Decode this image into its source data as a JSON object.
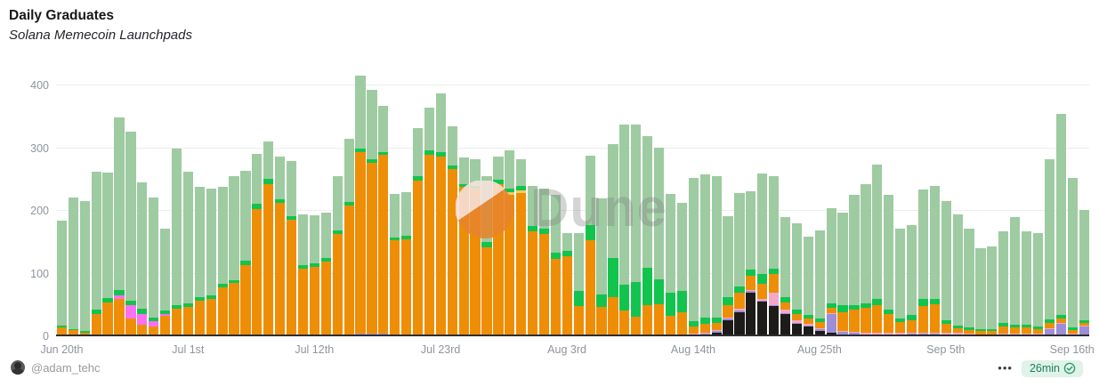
{
  "header": {
    "title": "Daily Graduates",
    "subtitle": "Solana Memecoin Launchpads"
  },
  "watermark": {
    "text": "Dune",
    "logo_orange": "#e8842c",
    "logo_pale": "#f7e3de"
  },
  "footer": {
    "author": "@adam_tehc",
    "more_label": "•••",
    "refresh_badge": "26min",
    "badge_bg": "#e0f2e9",
    "badge_text_color": "#1d7f5f"
  },
  "chart_data": {
    "type": "bar",
    "stacked": true,
    "title": "Daily Graduates",
    "subtitle": "Solana Memecoin Launchpads",
    "xlabel": "",
    "ylabel": "",
    "ylim": [
      0,
      400
    ],
    "y_ticks": [
      0,
      100,
      200,
      300,
      400
    ],
    "grid": true,
    "legend": "none",
    "x_is_daily_dates": "Jun 20 through Sep 17",
    "x_tick_labels": [
      "Jun 20th",
      "Jul 1st",
      "Jul 12th",
      "Jul 23rd",
      "Aug 3rd",
      "Aug 14th",
      "Aug 25th",
      "Sep 5th",
      "Sep 16th"
    ],
    "x_tick_indices": [
      0,
      11,
      22,
      33,
      44,
      55,
      66,
      77,
      88
    ],
    "series_order": [
      "black",
      "purple",
      "pink",
      "orange",
      "magenta",
      "yellow",
      "green",
      "pale_green"
    ],
    "series_colors": {
      "black": "#1c1b1a",
      "purple": "#9d8ed6",
      "pink": "#f3a8c8",
      "orange": "#ee8e06",
      "magenta": "#fb6ff1",
      "yellow": "#f0cd62",
      "green": "#12c44e",
      "pale_green": "#9ecba1"
    },
    "bars": [
      [
        0,
        2,
        0,
        12,
        0,
        0,
        3,
        168
      ],
      [
        0,
        1,
        0,
        9,
        0,
        0,
        2,
        210
      ],
      [
        0,
        1,
        0,
        5,
        0,
        0,
        2,
        207
      ],
      [
        0,
        2,
        0,
        33,
        0,
        0,
        8,
        220
      ],
      [
        0,
        2,
        0,
        52,
        0,
        0,
        7,
        200
      ],
      [
        0,
        2,
        0,
        58,
        6,
        0,
        8,
        275
      ],
      [
        0,
        2,
        0,
        26,
        22,
        0,
        7,
        269
      ],
      [
        0,
        2,
        0,
        16,
        18,
        0,
        8,
        202
      ],
      [
        0,
        2,
        0,
        13,
        9,
        0,
        6,
        191
      ],
      [
        0,
        2,
        0,
        30,
        4,
        0,
        5,
        131
      ],
      [
        0,
        2,
        0,
        42,
        0,
        0,
        6,
        250
      ],
      [
        0,
        2,
        0,
        45,
        0,
        0,
        5,
        210
      ],
      [
        0,
        2,
        0,
        55,
        0,
        0,
        6,
        175
      ],
      [
        0,
        2,
        0,
        58,
        0,
        0,
        5,
        171
      ],
      [
        0,
        3,
        0,
        75,
        0,
        0,
        6,
        154
      ],
      [
        0,
        3,
        0,
        82,
        0,
        0,
        5,
        166
      ],
      [
        0,
        3,
        0,
        110,
        0,
        0,
        8,
        143
      ],
      [
        0,
        3,
        0,
        200,
        0,
        0,
        8,
        80
      ],
      [
        0,
        3,
        0,
        240,
        0,
        0,
        8,
        59
      ],
      [
        0,
        3,
        0,
        210,
        0,
        0,
        6,
        68
      ],
      [
        0,
        3,
        0,
        183,
        0,
        0,
        5,
        88
      ],
      [
        0,
        3,
        0,
        105,
        0,
        0,
        6,
        80
      ],
      [
        0,
        3,
        0,
        108,
        0,
        0,
        5,
        77
      ],
      [
        0,
        3,
        0,
        116,
        0,
        0,
        6,
        72
      ],
      [
        0,
        3,
        0,
        160,
        0,
        0,
        6,
        86
      ],
      [
        0,
        3,
        0,
        205,
        0,
        0,
        6,
        101
      ],
      [
        0,
        4,
        0,
        290,
        0,
        0,
        6,
        115
      ],
      [
        0,
        4,
        0,
        273,
        0,
        0,
        6,
        110
      ],
      [
        0,
        4,
        0,
        285,
        0,
        0,
        5,
        74
      ],
      [
        0,
        3,
        0,
        150,
        0,
        0,
        5,
        69
      ],
      [
        0,
        3,
        0,
        152,
        0,
        0,
        5,
        70
      ],
      [
        0,
        3,
        0,
        245,
        0,
        0,
        8,
        76
      ],
      [
        0,
        3,
        0,
        287,
        0,
        0,
        6,
        69
      ],
      [
        0,
        3,
        0,
        283,
        0,
        0,
        8,
        94
      ],
      [
        0,
        3,
        0,
        263,
        0,
        0,
        6,
        63
      ],
      [
        0,
        3,
        0,
        235,
        0,
        0,
        5,
        42
      ],
      [
        0,
        3,
        0,
        232,
        0,
        0,
        5,
        43
      ],
      [
        0,
        3,
        0,
        139,
        0,
        0,
        8,
        105
      ],
      [
        0,
        3,
        0,
        240,
        0,
        0,
        6,
        38
      ],
      [
        0,
        3,
        0,
        222,
        0,
        5,
        6,
        60
      ],
      [
        0,
        3,
        0,
        225,
        0,
        4,
        8,
        42
      ],
      [
        0,
        3,
        0,
        165,
        0,
        0,
        8,
        64
      ],
      [
        0,
        3,
        0,
        160,
        0,
        0,
        8,
        64
      ],
      [
        0,
        3,
        0,
        120,
        0,
        0,
        10,
        92
      ],
      [
        0,
        3,
        0,
        125,
        0,
        0,
        8,
        28
      ],
      [
        0,
        3,
        0,
        45,
        0,
        0,
        25,
        92
      ],
      [
        0,
        3,
        0,
        150,
        0,
        0,
        25,
        110
      ],
      [
        0,
        3,
        0,
        44,
        0,
        0,
        20,
        153
      ],
      [
        0,
        3,
        0,
        60,
        0,
        0,
        62,
        181
      ],
      [
        0,
        3,
        0,
        38,
        0,
        0,
        42,
        255
      ],
      [
        0,
        3,
        0,
        28,
        0,
        0,
        56,
        250
      ],
      [
        0,
        3,
        0,
        46,
        0,
        0,
        60,
        210
      ],
      [
        0,
        3,
        0,
        48,
        0,
        0,
        40,
        210
      ],
      [
        0,
        3,
        0,
        30,
        0,
        0,
        36,
        158
      ],
      [
        0,
        3,
        0,
        36,
        0,
        0,
        34,
        140
      ],
      [
        0,
        2,
        2,
        12,
        0,
        0,
        8,
        228
      ],
      [
        2,
        2,
        2,
        14,
        0,
        0,
        10,
        228
      ],
      [
        5,
        3,
        2,
        12,
        0,
        0,
        8,
        225
      ],
      [
        25,
        3,
        2,
        20,
        0,
        0,
        12,
        130
      ],
      [
        38,
        3,
        3,
        25,
        0,
        0,
        10,
        150
      ],
      [
        70,
        2,
        2,
        22,
        0,
        0,
        10,
        125
      ],
      [
        55,
        2,
        2,
        25,
        0,
        0,
        15,
        161
      ],
      [
        48,
        2,
        20,
        30,
        0,
        0,
        8,
        147
      ],
      [
        35,
        2,
        5,
        12,
        0,
        0,
        8,
        128
      ],
      [
        20,
        2,
        3,
        10,
        0,
        0,
        8,
        137
      ],
      [
        15,
        2,
        3,
        8,
        0,
        0,
        6,
        125
      ],
      [
        8,
        3,
        2,
        10,
        0,
        0,
        6,
        140
      ],
      [
        5,
        30,
        2,
        8,
        0,
        0,
        8,
        152
      ],
      [
        3,
        4,
        2,
        30,
        0,
        0,
        10,
        148
      ],
      [
        2,
        3,
        2,
        35,
        0,
        0,
        8,
        175
      ],
      [
        0,
        3,
        2,
        40,
        0,
        0,
        8,
        189
      ],
      [
        0,
        3,
        2,
        45,
        0,
        0,
        10,
        214
      ],
      [
        0,
        3,
        2,
        30,
        0,
        0,
        8,
        182
      ],
      [
        0,
        3,
        2,
        18,
        0,
        0,
        6,
        142
      ],
      [
        0,
        4,
        2,
        20,
        0,
        0,
        8,
        143
      ],
      [
        0,
        4,
        2,
        42,
        0,
        0,
        12,
        174
      ],
      [
        0,
        4,
        2,
        45,
        0,
        0,
        8,
        181
      ],
      [
        0,
        3,
        2,
        15,
        0,
        0,
        5,
        191
      ],
      [
        0,
        3,
        2,
        8,
        0,
        0,
        4,
        178
      ],
      [
        0,
        3,
        1,
        6,
        0,
        0,
        4,
        158
      ],
      [
        0,
        2,
        1,
        5,
        0,
        0,
        3,
        129
      ],
      [
        0,
        2,
        1,
        6,
        0,
        0,
        3,
        131
      ],
      [
        0,
        3,
        1,
        12,
        0,
        0,
        5,
        147
      ],
      [
        0,
        3,
        1,
        10,
        0,
        0,
        5,
        171
      ],
      [
        0,
        3,
        1,
        10,
        0,
        0,
        4,
        149
      ],
      [
        0,
        3,
        1,
        8,
        0,
        0,
        4,
        149
      ],
      [
        0,
        12,
        1,
        8,
        0,
        0,
        6,
        256
      ],
      [
        0,
        20,
        2,
        6,
        0,
        0,
        6,
        320
      ],
      [
        0,
        3,
        1,
        6,
        0,
        0,
        4,
        239
      ],
      [
        0,
        15,
        2,
        5,
        0,
        0,
        3,
        176
      ]
    ]
  }
}
